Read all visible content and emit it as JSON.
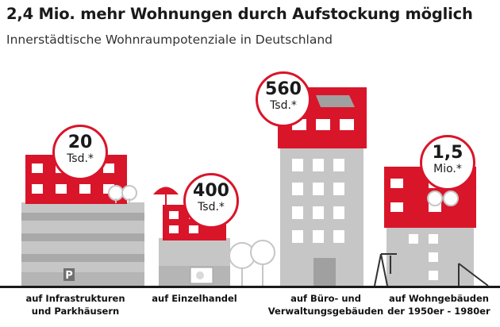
{
  "header": {
    "title": "2,4 Mio. mehr Wohnungen durch Aufstockung möglich",
    "subtitle": "Innerstädtische Wohnraumpotenziale in Deutschland"
  },
  "colors": {
    "accent": "#d9152a",
    "building_gray": "#c6c6c6",
    "window_gray": "#a0a0a0"
  },
  "chart_data": {
    "type": "bar",
    "categories": [
      "auf Infrastrukturen und Parkhäusern",
      "auf Einzelhandel",
      "auf Büro- und Verwaltungsgebäuden",
      "auf Wohngebäuden der 1950er - 1980er"
    ],
    "values_thousand": [
      20,
      400,
      560,
      1500
    ],
    "bubbles": [
      {
        "value": "20",
        "unit": "Tsd.*"
      },
      {
        "value": "400",
        "unit": "Tsd.*"
      },
      {
        "value": "560",
        "unit": "Tsd.*"
      },
      {
        "value": "1,5",
        "unit": "Mio.*"
      }
    ],
    "labels": [
      {
        "line1": "auf Infrastrukturen",
        "line2": "und Parkhäusern"
      },
      {
        "line1": "auf Einzelhandel",
        "line2": ""
      },
      {
        "line1": "auf Büro- und",
        "line2": "Verwaltungsgebäuden"
      },
      {
        "line1": "auf Wohngebäuden",
        "line2": "der 1950er - 1980er"
      }
    ]
  },
  "icons": {
    "parking_sign": "P"
  }
}
